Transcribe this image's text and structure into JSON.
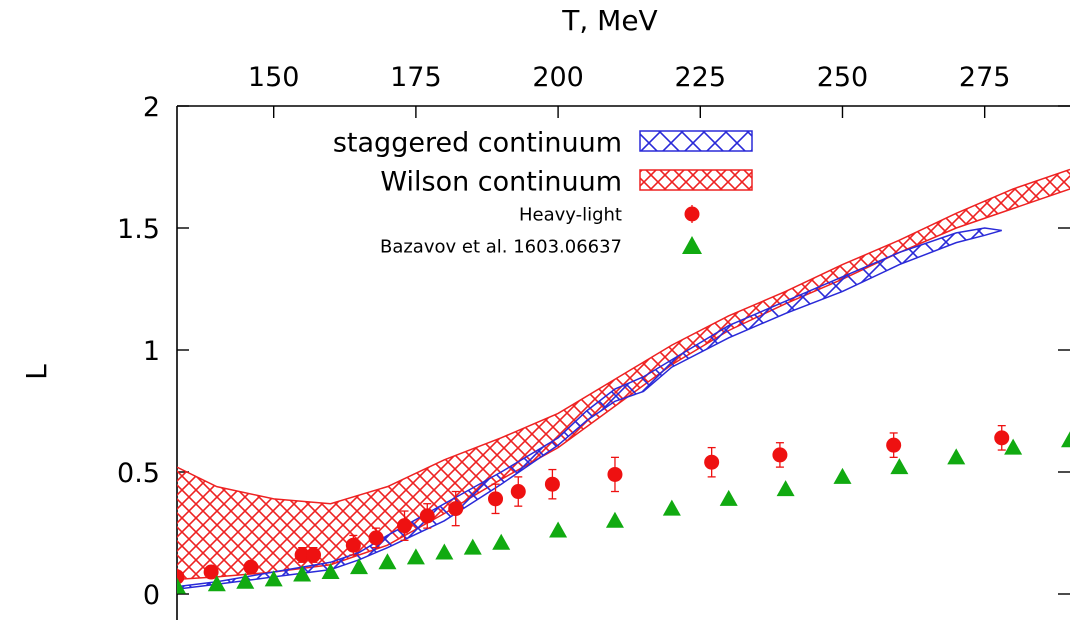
{
  "chart_data": {
    "type": "scatter",
    "title": "",
    "xlabel": "T, MeV",
    "ylabel": "L",
    "xlim": [
      133,
      290
    ],
    "ylim": [
      0,
      2
    ],
    "x_axis_position": "top",
    "x_ticks": [
      "150",
      "175",
      "200",
      "225",
      "250",
      "275"
    ],
    "y_ticks": [
      "0",
      "0.5",
      "1",
      "1.5",
      "2"
    ],
    "grid": false,
    "legend_position": "top-left",
    "series": [
      {
        "name": "staggered continuum",
        "kind": "band",
        "color": "#2a2ad8",
        "pattern": "crosshatch",
        "x": [
          133,
          140,
          150,
          160,
          165,
          170,
          180,
          190,
          200,
          205,
          210,
          215,
          220,
          230,
          240,
          250,
          260,
          270,
          275,
          278
        ],
        "low": [
          0.02,
          0.04,
          0.07,
          0.1,
          0.14,
          0.19,
          0.3,
          0.45,
          0.61,
          0.71,
          0.79,
          0.83,
          0.93,
          1.05,
          1.15,
          1.24,
          1.35,
          1.44,
          1.47,
          1.49
        ],
        "high": [
          0.03,
          0.05,
          0.09,
          0.13,
          0.17,
          0.24,
          0.37,
          0.5,
          0.64,
          0.75,
          0.84,
          0.89,
          0.96,
          1.1,
          1.2,
          1.3,
          1.4,
          1.48,
          1.5,
          1.49
        ]
      },
      {
        "name": "Wilson continuum",
        "kind": "band",
        "color": "#ee2222",
        "pattern": "crosshatch",
        "x": [
          133,
          140,
          150,
          160,
          170,
          180,
          190,
          200,
          210,
          220,
          230,
          240,
          250,
          260,
          270,
          280,
          290
        ],
        "low": [
          0.06,
          0.07,
          0.09,
          0.12,
          0.2,
          0.33,
          0.47,
          0.6,
          0.77,
          0.94,
          1.08,
          1.19,
          1.29,
          1.4,
          1.5,
          1.58,
          1.66
        ],
        "high": [
          0.52,
          0.44,
          0.39,
          0.37,
          0.44,
          0.55,
          0.64,
          0.74,
          0.88,
          1.02,
          1.14,
          1.24,
          1.35,
          1.45,
          1.56,
          1.66,
          1.74
        ]
      },
      {
        "name": "Heavy-light",
        "kind": "points",
        "marker": "circle",
        "color": "#ee1111",
        "x": [
          133,
          139,
          146,
          155,
          157,
          164,
          168,
          173,
          177,
          182,
          189,
          193,
          199,
          210,
          227,
          239,
          259,
          278
        ],
        "y": [
          0.07,
          0.09,
          0.11,
          0.16,
          0.16,
          0.2,
          0.23,
          0.28,
          0.32,
          0.35,
          0.39,
          0.42,
          0.45,
          0.49,
          0.54,
          0.57,
          0.61,
          0.64
        ],
        "err": [
          0.02,
          0.02,
          0.02,
          0.03,
          0.03,
          0.04,
          0.04,
          0.06,
          0.05,
          0.07,
          0.06,
          0.06,
          0.06,
          0.07,
          0.06,
          0.05,
          0.05,
          0.05
        ]
      },
      {
        "name": "Bazavov et al. 1603.06637",
        "kind": "points",
        "marker": "triangle",
        "color": "#11aa11",
        "x": [
          133,
          140,
          145,
          150,
          155,
          160,
          165,
          170,
          175,
          180,
          185,
          190,
          200,
          210,
          220,
          230,
          240,
          250,
          260,
          270,
          280,
          290
        ],
        "y": [
          0.03,
          0.04,
          0.05,
          0.06,
          0.08,
          0.09,
          0.11,
          0.13,
          0.15,
          0.17,
          0.19,
          0.21,
          0.26,
          0.3,
          0.35,
          0.39,
          0.43,
          0.48,
          0.52,
          0.56,
          0.6,
          0.63
        ]
      }
    ]
  }
}
